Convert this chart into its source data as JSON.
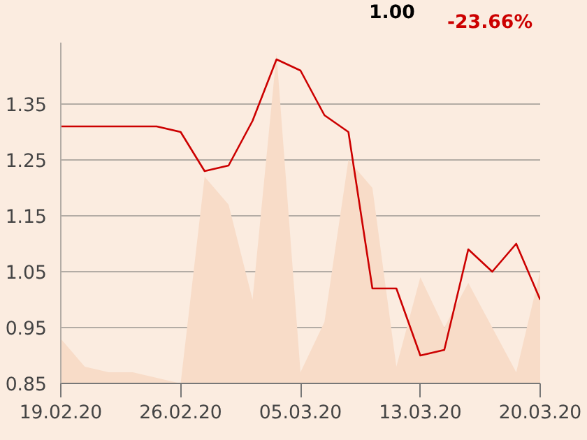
{
  "chart_data": {
    "type": "line",
    "annotations": [
      "1.00",
      "-23.66%"
    ],
    "categories": [
      "19.02.20",
      null,
      null,
      null,
      null,
      "26.02.20",
      null,
      null,
      null,
      null,
      "05.03.20",
      null,
      null,
      null,
      null,
      "13.03.20",
      null,
      null,
      null,
      null,
      "20.03.20"
    ],
    "series": [
      {
        "type": "area",
        "color": "#f8dcc8",
        "values": [
          0.93,
          0.88,
          0.87,
          0.87,
          0.86,
          0.85,
          1.22,
          1.17,
          1.0,
          1.44,
          0.87,
          0.96,
          1.25,
          1.2,
          0.88,
          1.04,
          0.95,
          1.03,
          0.95,
          0.87,
          1.05
        ]
      },
      {
        "color": "#cc0000",
        "values": [
          1.31,
          1.31,
          1.31,
          1.31,
          1.31,
          1.3,
          1.23,
          1.24,
          1.32,
          1.43,
          1.41,
          1.33,
          1.3,
          1.02,
          1.02,
          0.9,
          0.91,
          1.09,
          1.05,
          1.1,
          1.0
        ]
      }
    ],
    "yticks": [
      0.85,
      0.95,
      1.05,
      1.15,
      1.25,
      1.35
    ],
    "ylim": [
      0.85,
      1.46
    ],
    "grid": "y",
    "marker": "none",
    "line_style": "solid"
  }
}
